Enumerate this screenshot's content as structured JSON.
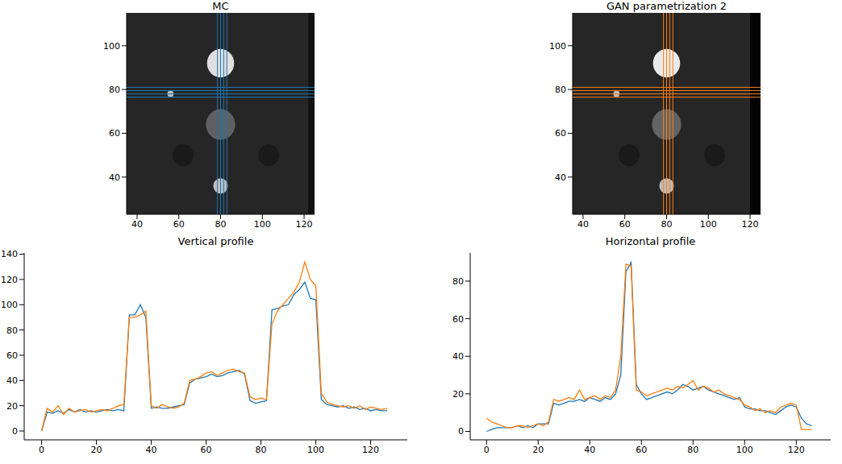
{
  "chart_data": [
    {
      "type": "image",
      "title": "MC",
      "xlim": [
        35,
        125
      ],
      "ylim": [
        23,
        115
      ],
      "xticks": [
        40,
        60,
        80,
        100,
        120
      ],
      "yticks": [
        40,
        60,
        80,
        100
      ],
      "color_range": [
        0,
        120
      ],
      "background": 18,
      "color": "#1f77b4",
      "objects": [
        {
          "x": 62,
          "y": 50,
          "r": 5,
          "intensity": 12
        },
        {
          "x": 103,
          "y": 50,
          "r": 5,
          "intensity": 12
        },
        {
          "x": 80,
          "y": 92,
          "r": 6.5,
          "intensity": 105
        },
        {
          "x": 80,
          "y": 64,
          "r": 7,
          "intensity": 45
        },
        {
          "x": 80,
          "y": 36,
          "r": 3.5,
          "intensity": 90
        },
        {
          "x": 56,
          "y": 78,
          "r": 1.5,
          "intensity": 90
        }
      ],
      "bands": [
        {
          "x0": 122,
          "x1": 125,
          "intensity": 8
        }
      ],
      "profile_lines": {
        "x": [
          78.5,
          80,
          81.5,
          83
        ],
        "y": [
          76.5,
          78,
          79.5,
          81
        ]
      }
    },
    {
      "type": "image",
      "title": "GAN parametrization 2",
      "xlim": [
        35,
        125
      ],
      "ylim": [
        23,
        115
      ],
      "xticks": [
        40,
        60,
        80,
        100,
        120
      ],
      "yticks": [
        40,
        60,
        80,
        100
      ],
      "color_range": [
        0,
        120
      ],
      "background": 18,
      "color": "#ff7f0e",
      "objects": [
        {
          "x": 62,
          "y": 50,
          "r": 5,
          "intensity": 12
        },
        {
          "x": 103,
          "y": 50,
          "r": 5,
          "intensity": 12
        },
        {
          "x": 80,
          "y": 92,
          "r": 6.5,
          "intensity": 110
        },
        {
          "x": 80,
          "y": 64,
          "r": 7,
          "intensity": 47
        },
        {
          "x": 80,
          "y": 36,
          "r": 3.5,
          "intensity": 88
        },
        {
          "x": 56,
          "y": 78,
          "r": 1.5,
          "intensity": 88
        }
      ],
      "bands": [
        {
          "x0": 120,
          "x1": 125,
          "intensity": 2
        }
      ],
      "profile_lines": {
        "x": [
          78.5,
          80,
          81.5,
          83
        ],
        "y": [
          76.5,
          78,
          79.5,
          81
        ]
      }
    },
    {
      "type": "line",
      "title": "Vertical profile",
      "xlim": [
        -6.35,
        133.35
      ],
      "ylim": [
        -7,
        141
      ],
      "xticks": [
        0,
        20,
        40,
        60,
        80,
        100,
        120
      ],
      "yticks": [
        0,
        20,
        40,
        60,
        80,
        100,
        120,
        140
      ],
      "x": [
        0,
        2,
        4,
        6,
        8,
        10,
        12,
        14,
        16,
        18,
        20,
        22,
        24,
        26,
        28,
        30,
        32,
        34,
        36,
        38,
        40,
        42,
        44,
        46,
        48,
        50,
        52,
        54,
        56,
        58,
        60,
        62,
        64,
        66,
        68,
        70,
        72,
        74,
        76,
        78,
        80,
        82,
        84,
        86,
        88,
        90,
        92,
        94,
        96,
        98,
        100,
        102,
        104,
        106,
        108,
        110,
        112,
        114,
        116,
        118,
        120,
        122,
        124,
        126
      ],
      "series": [
        {
          "color": "#1f77b4",
          "values": [
            0,
            15,
            14,
            16,
            14,
            17,
            15,
            17,
            15,
            16,
            15,
            16,
            17,
            16,
            17,
            16,
            92,
            92,
            100,
            90,
            18,
            19,
            18,
            18,
            19,
            20,
            21,
            38,
            41,
            42,
            43,
            45,
            43,
            44,
            46,
            47,
            48,
            45,
            24,
            22,
            23,
            24,
            96,
            97,
            99,
            100,
            108,
            112,
            118,
            105,
            104,
            25,
            21,
            20,
            19,
            20,
            18,
            19,
            17,
            18,
            16,
            17,
            16,
            16
          ]
        },
        {
          "color": "#ff7f0e",
          "values": [
            0,
            18,
            15,
            20,
            13,
            18,
            15,
            16,
            17,
            15,
            16,
            17,
            16,
            18,
            20,
            21,
            90,
            90,
            92,
            95,
            20,
            18,
            21,
            19,
            18,
            19,
            22,
            40,
            41,
            43,
            46,
            47,
            44,
            46,
            48,
            49,
            47,
            46,
            27,
            25,
            26,
            25,
            85,
            95,
            100,
            105,
            110,
            118,
            134,
            120,
            115,
            30,
            23,
            21,
            20,
            19,
            20,
            18,
            20,
            17,
            19,
            18,
            17,
            18
          ]
        }
      ]
    },
    {
      "type": "line",
      "title": "Horizontal profile",
      "xlim": [
        -6.35,
        133.35
      ],
      "ylim": [
        -4.5,
        95
      ],
      "xticks": [
        0,
        20,
        40,
        60,
        80,
        100,
        120
      ],
      "yticks": [
        0,
        20,
        40,
        60,
        80
      ],
      "x": [
        0,
        2,
        4,
        6,
        8,
        10,
        12,
        14,
        16,
        18,
        20,
        22,
        24,
        26,
        28,
        30,
        32,
        34,
        36,
        38,
        40,
        42,
        44,
        46,
        48,
        50,
        52,
        54,
        56,
        58,
        60,
        62,
        64,
        66,
        68,
        70,
        72,
        74,
        76,
        78,
        80,
        82,
        84,
        86,
        88,
        90,
        92,
        94,
        96,
        98,
        100,
        102,
        104,
        106,
        108,
        110,
        112,
        114,
        116,
        118,
        120,
        122,
        124,
        126
      ],
      "series": [
        {
          "color": "#1f77b4",
          "values": [
            0,
            1,
            2,
            2,
            2,
            2,
            3,
            2,
            3,
            2,
            4,
            4,
            4,
            15,
            14,
            15,
            16,
            16,
            17,
            16,
            18,
            17,
            16,
            18,
            17,
            20,
            30,
            85,
            90,
            25,
            20,
            17,
            18,
            19,
            20,
            21,
            20,
            22,
            25,
            24,
            22,
            23,
            24,
            22,
            21,
            20,
            19,
            18,
            17,
            18,
            13,
            12,
            12,
            11,
            11,
            10,
            9,
            11,
            13,
            14,
            13,
            7,
            4,
            3
          ]
        },
        {
          "color": "#ff7f0e",
          "values": [
            7,
            5,
            4,
            3,
            2,
            2,
            3,
            3,
            2,
            3,
            4,
            3,
            5,
            17,
            16,
            17,
            18,
            17,
            22,
            17,
            18,
            19,
            17,
            19,
            18,
            22,
            40,
            89,
            88,
            22,
            21,
            19,
            20,
            21,
            22,
            23,
            22,
            24,
            23,
            25,
            27,
            22,
            24,
            23,
            21,
            22,
            20,
            19,
            18,
            17,
            14,
            13,
            11,
            12,
            10,
            11,
            10,
            13,
            14,
            15,
            14,
            1,
            1,
            1
          ]
        }
      ]
    }
  ]
}
